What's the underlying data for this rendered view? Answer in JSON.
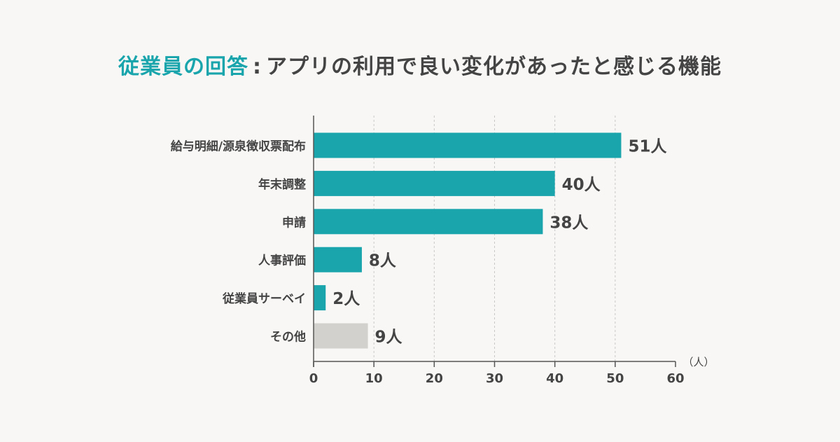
{
  "title": {
    "highlight": "従業員の回答",
    "separator": ":",
    "rest": "アプリの利用で良い変化があったと感じる機能"
  },
  "colors": {
    "accent": "#1aa5ad",
    "other": "#d3d1cd",
    "axis": "#555555",
    "grid": "#c8c8c8",
    "text": "#444444",
    "background": "#f8f7f5"
  },
  "chart_data": {
    "type": "bar",
    "orientation": "horizontal",
    "title": "従業員の回答：アプリの利用で良い変化があったと感じる機能",
    "categories": [
      "給与明細/源泉徴収票配布",
      "年末調整",
      "申請",
      "人事評価",
      "従業員サーベイ",
      "その他"
    ],
    "values": [
      51,
      40,
      38,
      8,
      2,
      9
    ],
    "value_labels": [
      "51人",
      "40人",
      "38人",
      "8人",
      "2人",
      "9人"
    ],
    "highlight": [
      true,
      true,
      true,
      true,
      true,
      false
    ],
    "xlim": [
      0,
      60
    ],
    "xticks": [
      0,
      10,
      20,
      30,
      40,
      50,
      60
    ],
    "xlabel": "（人）",
    "ylabel": "",
    "grid": "vertical dashed"
  }
}
